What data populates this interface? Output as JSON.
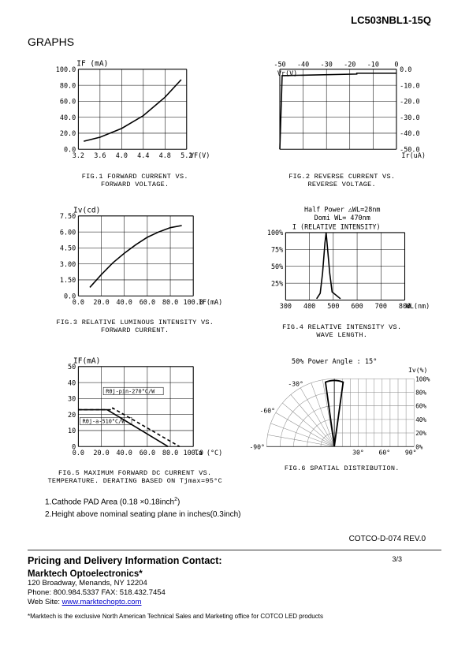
{
  "partNumber": "LC503NBL1-15Q",
  "sectionTitle": "GRAPHS",
  "charts": {
    "fig1": {
      "type": "line",
      "ylabel": "IF (mA)",
      "xlabel": "VF(V)",
      "caption_line1": "FIG.1 FORWARD CURRENT VS.",
      "caption_line2": "FORWARD VOLTAGE.",
      "xlim": [
        3.2,
        5.2
      ],
      "xtick_step": 0.4,
      "xticks": [
        "3.2",
        "3.6",
        "4.0",
        "4.4",
        "4.8",
        "5.2"
      ],
      "ylim": [
        0,
        100
      ],
      "ytick_step": 20,
      "yticks": [
        "0.0",
        "20.0",
        "40.0",
        "60.0",
        "80.0",
        "100.0"
      ],
      "data_x": [
        3.3,
        3.6,
        4.0,
        4.4,
        4.8,
        5.1
      ],
      "data_y": [
        10,
        15,
        26,
        42,
        65,
        87
      ],
      "line_color": "#000000",
      "line_width": 1.5,
      "grid_color": "#000000"
    },
    "fig2": {
      "type": "line",
      "ylabel_pos": "top",
      "ylabel": "Vr(V)",
      "xlabel_pos": "right",
      "xlabel": "Ir(uA)",
      "caption_line1": "FIG.2 REVERSE CURRENT VS.",
      "caption_line2": "REVERSE VOLTAGE.",
      "xlim": [
        -50,
        0
      ],
      "xticks": [
        "-50",
        "-40",
        "-30",
        "-20",
        "-10",
        "0"
      ],
      "ylim": [
        -50,
        0
      ],
      "yticks": [
        "0.0",
        "-10.0",
        "-20.0",
        "-30.0",
        "-40.0",
        "-50.0"
      ],
      "data_x": [
        -50,
        -49,
        -17,
        -17,
        0
      ],
      "data_y": [
        -50,
        -4,
        -3,
        -2.5,
        -2.5
      ],
      "line_color": "#000000",
      "line_width": 1.5,
      "grid_color": "#000000"
    },
    "fig3": {
      "type": "line",
      "ylabel": "Iv(cd)",
      "xlabel": "IF(mA)",
      "caption_line1": "FIG.3 RELATIVE LUMINOUS INTENSITY VS.",
      "caption_line2": "FORWARD CURRENT.",
      "xlim": [
        0,
        100
      ],
      "xtick_step": 20,
      "xticks": [
        "0.0",
        "20.0",
        "40.0",
        "60.0",
        "80.0",
        "100.0"
      ],
      "ylim": [
        0,
        7.5
      ],
      "ytick_step": 1.5,
      "yticks": [
        "0.0",
        "1.50",
        "3.00",
        "4.50",
        "6.00",
        "7.50"
      ],
      "data_x": [
        10,
        20,
        30,
        40,
        50,
        60,
        70,
        80,
        90
      ],
      "data_y": [
        0.8,
        2.0,
        3.1,
        4.0,
        4.8,
        5.5,
        6.0,
        6.4,
        6.6
      ],
      "line_color": "#000000",
      "line_width": 1.5,
      "grid_color": "#000000"
    },
    "fig4": {
      "type": "line",
      "header_line1": "Half Power  △WL=28nm",
      "header_line2": "Domi  WL= 470nm",
      "ylabel": "I (RELATIVE INTENSITY)",
      "xlabel": "WL(nm)",
      "caption_line1": "FIG.4 RELATIVE  INTENSITY VS.",
      "caption_line2": "WAVE LENGTH.",
      "xlim": [
        300,
        800
      ],
      "xtick_step": 100,
      "xticks": [
        "300",
        "400",
        "500",
        "600",
        "700",
        "800"
      ],
      "ylim": [
        0,
        100
      ],
      "ytick_step": 25,
      "yticks": [
        "25%",
        "50%",
        "75%",
        "100%"
      ],
      "data_x": [
        430,
        445,
        455,
        465,
        470,
        475,
        485,
        495,
        530
      ],
      "data_y": [
        2,
        10,
        40,
        85,
        100,
        80,
        40,
        12,
        2
      ],
      "line_color": "#000000",
      "line_width": 1.5,
      "grid_color": "#000000"
    },
    "fig5": {
      "type": "line-multi",
      "ylabel": "IF(mA)",
      "xlabel": "Ta (°C)",
      "caption_line1": "FIG.5 MAXIMUM FORWARD DC CURRENT VS.",
      "caption_line2": "TEMPERATURE. DERATING BASED ON Tjmax=95°C",
      "xlim": [
        0,
        100
      ],
      "xticks": [
        "0.0",
        "20.0",
        "40.0",
        "60.0",
        "80.0",
        "100.0"
      ],
      "ylim": [
        0,
        50
      ],
      "yticks": [
        "0",
        "10",
        "20",
        "30",
        "40",
        "50"
      ],
      "annotations": [
        "RΘj-pin-270°C/W",
        "RΘj-a-510°C/W"
      ],
      "series": [
        {
          "x": [
            0,
            25,
            78
          ],
          "y": [
            23,
            23,
            0
          ],
          "style": "solid"
        },
        {
          "x": [
            0,
            30,
            30,
            88
          ],
          "y": [
            23,
            23,
            24,
            0
          ],
          "style": "dashed"
        }
      ],
      "line_color": "#000000",
      "grid_color": "#000000"
    },
    "fig6": {
      "type": "polar",
      "header": "50% Power Angle :  15°",
      "ylabel_right": "Iv(%)",
      "caption_line1": "FIG.6 SPATIAL DISTRIBUTION.",
      "angle_labels": [
        "-30°",
        "-60°",
        "-90°",
        "30°",
        "60°",
        "90°"
      ],
      "radial_labels": [
        "100%",
        "80%",
        "60%",
        "40%",
        "20%",
        "0%"
      ],
      "beam_half_angle_deg": 7.5,
      "line_color": "#000000",
      "grid_color": "#888888"
    }
  },
  "notes": {
    "n1": "1.Cathode PAD Area (0.18 ×0.18inch",
    "n1_sup": "2",
    "n1_end": ")",
    "n2": "2.Height above nominal seating plane in inches(0.3inch)"
  },
  "revLine": "COTCO-D-074   REV.0",
  "pageNum": "3/3",
  "contact": {
    "heading": "Pricing and Delivery Information Contact:",
    "company": "Marktech Optoelectronics*",
    "address": "120 Broadway, Menands, NY 12204",
    "phone": "Phone: 800.984.5337 FAX: 518.432.7454",
    "webLabel": "Web Site:  ",
    "webUrl": "www.marktechopto.com",
    "disclaimer": "*Marktech is the exclusive North American Technical Sales and Marketing office for COTCO LED products"
  }
}
